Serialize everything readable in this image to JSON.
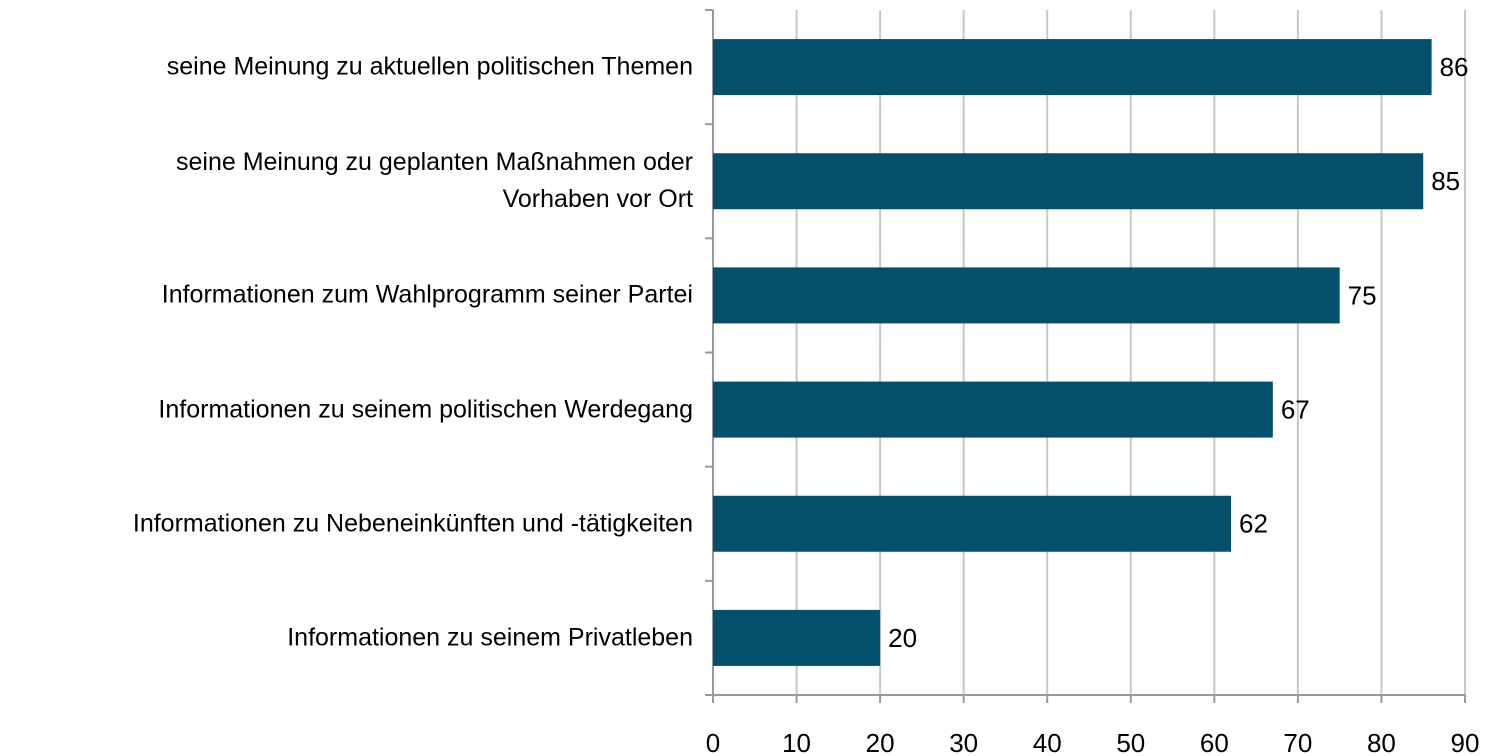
{
  "chart_data": {
    "type": "barh",
    "categories": [
      "seine Meinung zu aktuellen politischen Themen",
      "seine Meinung zu geplanten Maßnahmen oder\nVorhaben vor Ort",
      "Informationen zum Wahlprogramm seiner Partei",
      "Informationen zu seinem politischen Werdegang",
      "Informationen zu Nebeneinkünften und -tätigkeiten",
      "Informationen zu seinem Privatleben"
    ],
    "values": [
      86,
      85,
      75,
      67,
      62,
      20
    ],
    "color": "#03506c",
    "xlim": [
      0,
      90
    ],
    "xticks": [
      0,
      10,
      20,
      30,
      40,
      50,
      60,
      70,
      80,
      90
    ],
    "grid": true
  }
}
